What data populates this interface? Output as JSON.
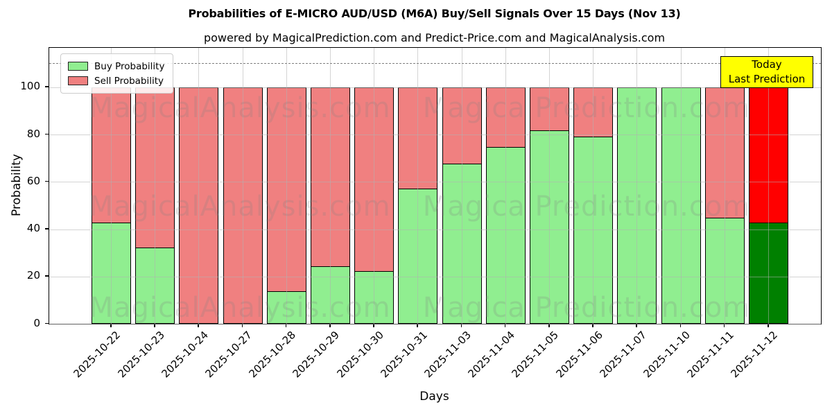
{
  "title": "Probabilities of E-MICRO AUD/USD (M6A) Buy/Sell Signals Over 15 Days (Nov 13)",
  "subtitle": "powered by MagicalPrediction.com and Predict-Price.com and MagicalAnalysis.com",
  "axes": {
    "xlabel": "Days",
    "ylabel": "Probability",
    "y_ticks": [
      0,
      20,
      40,
      60,
      80,
      100
    ],
    "ylim": [
      0,
      116.7
    ],
    "dashed_line_y": 110,
    "grid": true
  },
  "legend": {
    "position": "upper left",
    "items": [
      {
        "label": "Buy Probability",
        "color": "#90ee90"
      },
      {
        "label": "Sell Probability",
        "color": "#f08080"
      }
    ]
  },
  "annotation": {
    "line1": "Today",
    "line2": "Last Prediction",
    "bg_color": "#ffff00"
  },
  "watermarks": {
    "left": "MagicalAnalysis.com",
    "right": "Magica Prediction.com"
  },
  "colors": {
    "buy": "#90ee90",
    "sell": "#f08080",
    "buy_today": "#008000",
    "sell_today": "#ff0000",
    "bar_edge": "#000000",
    "grid": "#b0b0b0",
    "dashed_line": "#7f7f7f",
    "annotation_bg": "#ffff00"
  },
  "chart_data": {
    "type": "bar",
    "stacked": true,
    "title": "Probabilities of E-MICRO AUD/USD (M6A) Buy/Sell Signals Over 15 Days (Nov 13)",
    "xlabel": "Days",
    "ylabel": "Probability",
    "ylim": [
      0,
      116.7
    ],
    "grid": true,
    "legend_position": "upper left",
    "categories": [
      "2025-10-22",
      "2025-10-23",
      "2025-10-24",
      "2025-10-27",
      "2025-10-28",
      "2025-10-29",
      "2025-10-30",
      "2025-10-31",
      "2025-11-03",
      "2025-11-04",
      "2025-11-05",
      "2025-11-06",
      "2025-11-07",
      "2025-11-10",
      "2025-11-11",
      "2025-11-12"
    ],
    "series": [
      {
        "name": "Buy Probability",
        "color": "#90ee90",
        "values": [
          42.5,
          32,
          0,
          0,
          13.5,
          24,
          22,
          57,
          67.5,
          74.5,
          81.5,
          79,
          100,
          100,
          44.5,
          42.5
        ]
      },
      {
        "name": "Sell Probability",
        "color": "#f08080",
        "values": [
          57.5,
          68,
          100,
          100,
          86.5,
          76,
          78,
          43,
          32.5,
          25.5,
          18.5,
          21,
          0,
          0,
          55.5,
          57.5
        ]
      }
    ],
    "today_index": 15,
    "today_colors": {
      "buy": "#008000",
      "sell": "#ff0000"
    }
  }
}
